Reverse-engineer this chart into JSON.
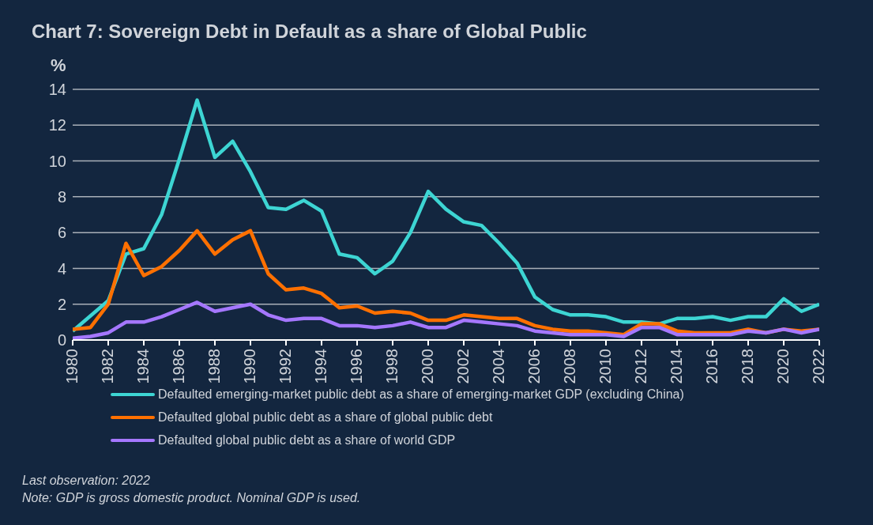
{
  "chart_data": {
    "type": "line",
    "title": "Chart 7: Sovereign Debt in Default as a share of Global Public",
    "ylabel": "%",
    "x": [
      1980,
      1981,
      1982,
      1983,
      1984,
      1985,
      1986,
      1987,
      1988,
      1989,
      1990,
      1991,
      1992,
      1993,
      1994,
      1995,
      1996,
      1997,
      1998,
      1999,
      2000,
      2001,
      2002,
      2003,
      2004,
      2005,
      2006,
      2007,
      2008,
      2009,
      2010,
      2011,
      2012,
      2013,
      2014,
      2015,
      2016,
      2017,
      2018,
      2019,
      2020,
      2021,
      2022
    ],
    "series": [
      {
        "name": "Defaulted emerging-market public debt as a share of emerging-market GDP (excluding China)",
        "color": "#3dd5d3",
        "values": [
          0.5,
          null,
          2.2,
          4.8,
          5.1,
          7.0,
          10.1,
          13.4,
          10.2,
          11.1,
          9.4,
          7.4,
          7.3,
          7.8,
          7.2,
          4.8,
          4.6,
          3.7,
          4.4,
          6.0,
          8.3,
          7.3,
          6.6,
          6.4,
          5.4,
          4.3,
          2.4,
          1.7,
          1.4,
          1.4,
          1.3,
          1.0,
          1.0,
          0.9,
          1.2,
          1.2,
          1.3,
          1.1,
          1.3,
          1.3,
          2.3,
          1.6,
          2.0
        ]
      },
      {
        "name": "Defaulted global public debt as a share of global public debt",
        "color": "#ff7000",
        "values": [
          0.6,
          0.7,
          2.0,
          5.4,
          3.6,
          4.1,
          5.0,
          6.1,
          4.8,
          5.6,
          6.1,
          3.7,
          2.8,
          2.9,
          2.6,
          1.8,
          1.9,
          1.5,
          1.6,
          1.5,
          1.1,
          1.1,
          1.4,
          1.3,
          1.2,
          1.2,
          0.8,
          0.6,
          0.5,
          0.5,
          0.4,
          0.3,
          0.9,
          0.9,
          0.5,
          0.4,
          0.4,
          0.4,
          0.6,
          0.4,
          0.6,
          0.5,
          0.6
        ]
      },
      {
        "name": "Defaulted global public debt as a share of world GDP",
        "color": "#a577ff",
        "values": [
          0.1,
          0.2,
          0.4,
          1.0,
          1.0,
          1.3,
          1.7,
          2.1,
          1.6,
          1.8,
          2.0,
          1.4,
          1.1,
          1.2,
          1.2,
          0.8,
          0.8,
          0.7,
          0.8,
          1.0,
          0.7,
          0.7,
          1.1,
          1.0,
          0.9,
          0.8,
          0.5,
          0.4,
          0.3,
          0.3,
          0.3,
          0.2,
          0.7,
          0.7,
          0.3,
          0.3,
          0.3,
          0.3,
          0.5,
          0.4,
          0.6,
          0.4,
          0.6
        ]
      }
    ],
    "xlim": [
      1980,
      2022
    ],
    "xticks": [
      1980,
      1982,
      1984,
      1986,
      1988,
      1990,
      1992,
      1994,
      1996,
      1998,
      2000,
      2002,
      2004,
      2006,
      2008,
      2010,
      2012,
      2014,
      2016,
      2018,
      2020,
      2022
    ],
    "ylim": [
      0,
      14
    ],
    "yticks": [
      0,
      2,
      4,
      6,
      8,
      10,
      12,
      14
    ],
    "grid": "y",
    "legend": "bottom",
    "marker": "none",
    "line_style": "solid",
    "annotations": [
      "Last observation: 2022",
      "Note: GDP is gross domestic product. Nominal GDP is used."
    ]
  }
}
